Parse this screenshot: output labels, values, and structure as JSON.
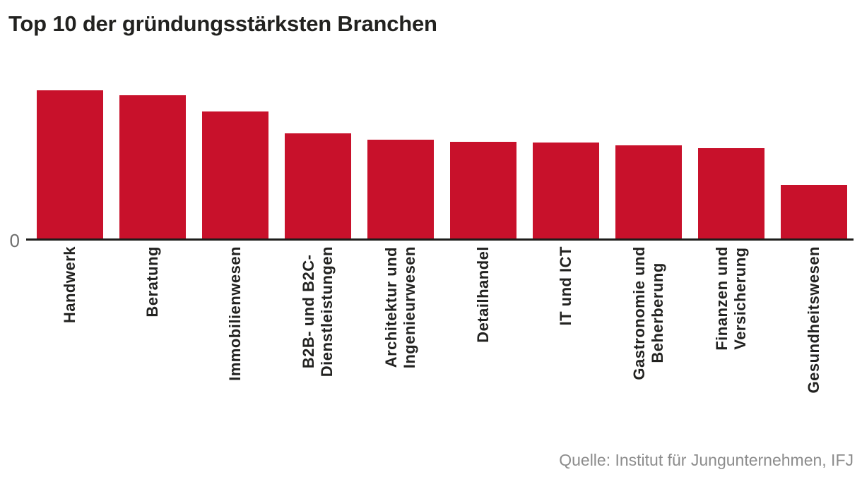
{
  "title": "Top 10 der gründungsstärksten Branchen",
  "y_axis": {
    "zero_label": "0"
  },
  "source_caption": "Quelle: Institut für Jungunternehmen, IFJ",
  "colors": {
    "bar": "#c8112b",
    "axis": "#1d1d1b",
    "title_text": "#222220",
    "tick_text": "#6f6f6e",
    "source_text": "#8c8c8c",
    "background": "#ffffff"
  },
  "chart_data": {
    "type": "bar",
    "title": "Top 10 der gründungsstärksten Branchen",
    "categories": [
      "Handwerk",
      "Beratung",
      "Immobilienwesen",
      "B2B- und B2C-Dienstleistungen",
      "Architektur und Ingenieurwesen",
      "Detailhandel",
      "IT und ICT",
      "Gastronomie und Beherberung",
      "Finanzen und Versicherung",
      "Gesundheitswesen"
    ],
    "category_label_lines": [
      [
        "Handwerk"
      ],
      [
        "Beratung"
      ],
      [
        "Immobilienwesen"
      ],
      [
        "B2B- und B2C-",
        "Dienstleistungen"
      ],
      [
        "Architektur und",
        "Ingenieurwesen"
      ],
      [
        "Detailhandel"
      ],
      [
        "IT und ICT"
      ],
      [
        "Gastronomie und",
        "Beherberung"
      ],
      [
        "Finanzen und",
        "Versicherung"
      ],
      [
        "Gesundheitswesen"
      ]
    ],
    "values": [
      100,
      96.7,
      85.7,
      71.0,
      66.7,
      65.2,
      64.8,
      62.9,
      61.0,
      36.2
    ],
    "value_note": "relative bar heights, tallest bar = 100 (chart shows no numeric y-axis scale, only a 0 baseline)",
    "xlabel": "",
    "ylabel": "",
    "y_ticks": [
      "0"
    ],
    "ylim": [
      0,
      100
    ],
    "grid": false,
    "legend": false,
    "bar_color": "#c8112b",
    "source": "Quelle: Institut für Jungunternehmen, IFJ"
  }
}
